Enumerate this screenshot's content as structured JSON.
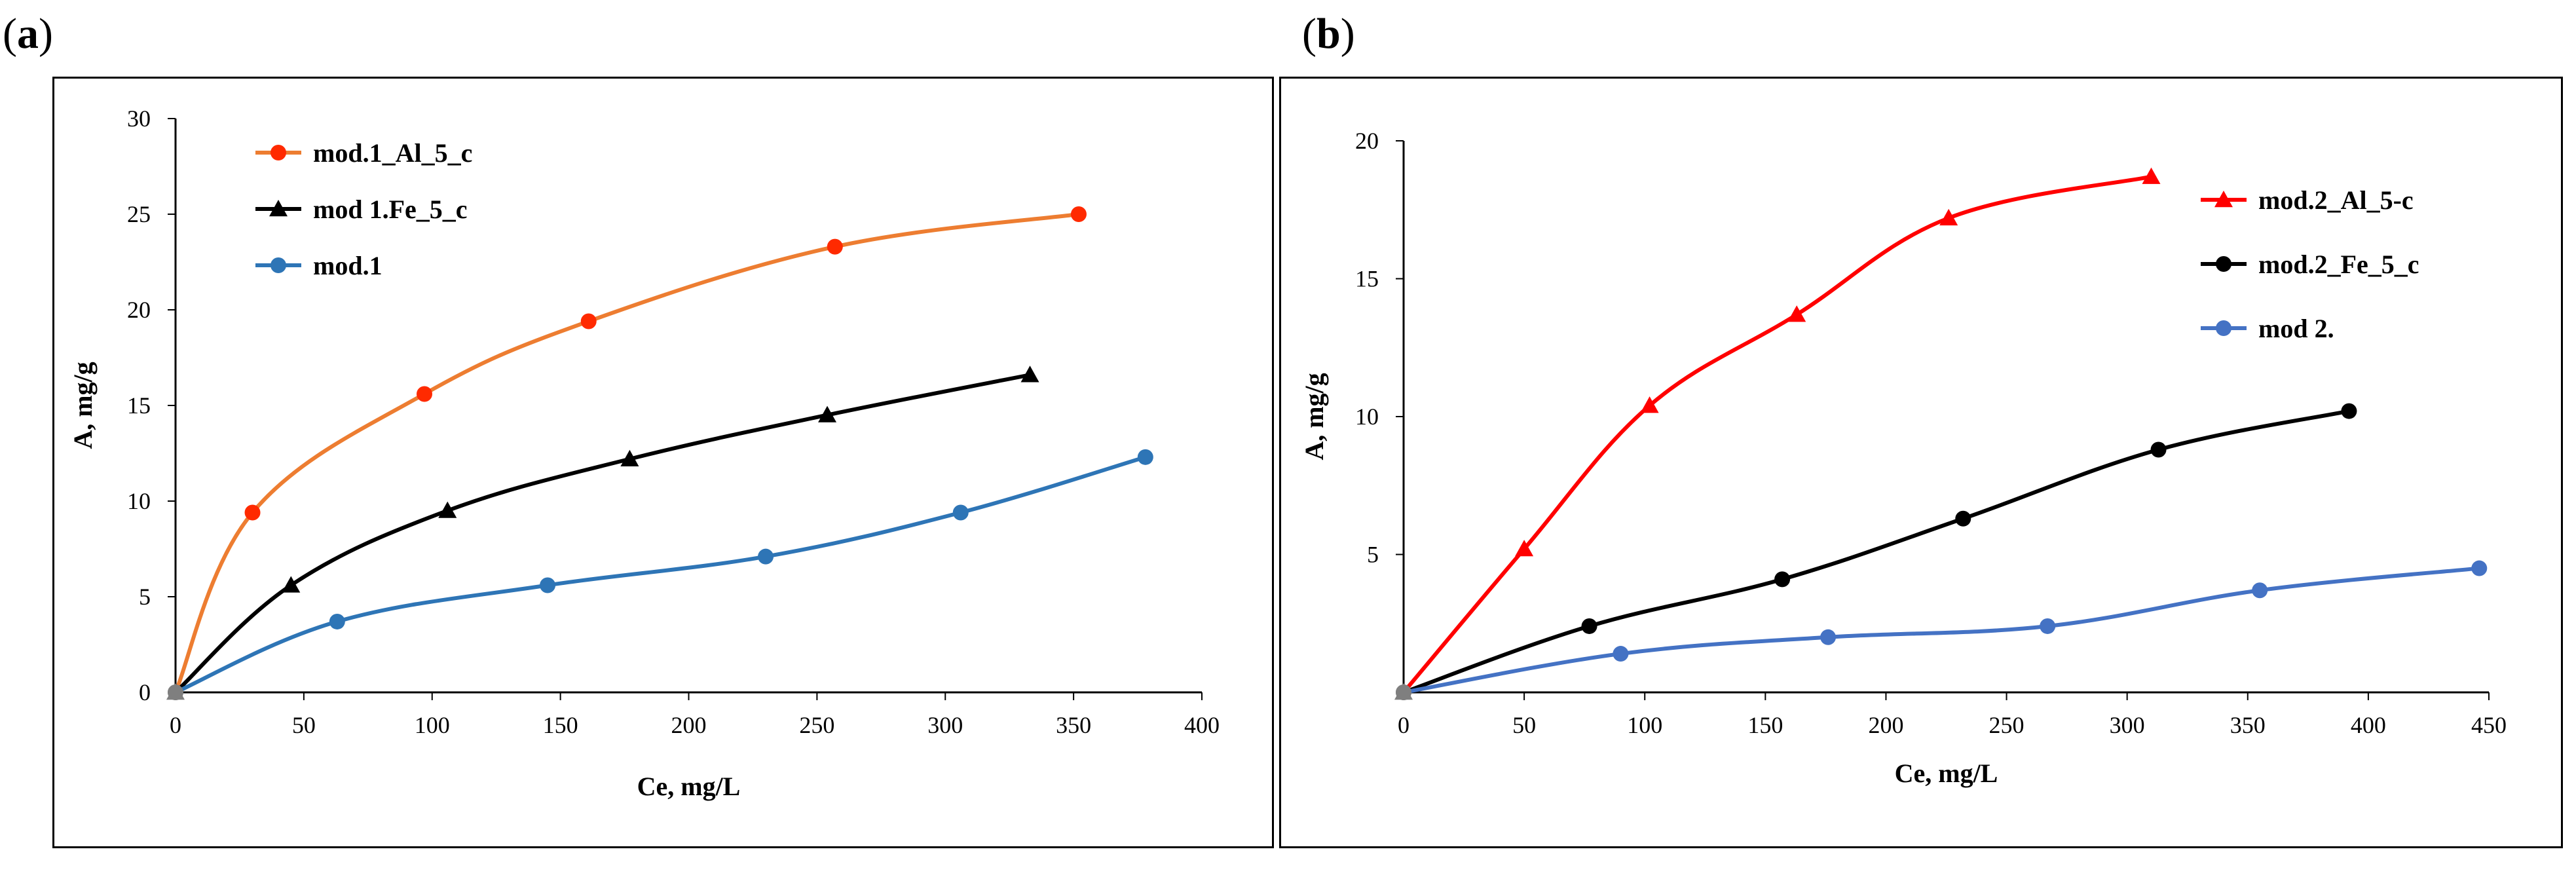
{
  "panels": {
    "a": {
      "label": "a"
    },
    "b": {
      "label": "b"
    }
  },
  "chart_data": [
    {
      "id": "a",
      "type": "line",
      "title": "",
      "xlabel": "Ce, mg/L",
      "ylabel": "A, mg/g",
      "xlim": [
        0,
        400
      ],
      "ylim": [
        0,
        30
      ],
      "xticks": [
        0,
        50,
        100,
        150,
        200,
        250,
        300,
        350,
        400
      ],
      "yticks": [
        0,
        5,
        10,
        15,
        20,
        25,
        30
      ],
      "grid": false,
      "legend_position": "top-left",
      "series": [
        {
          "name": "mod.1_Al_5_c",
          "line_color": "#ED7D31",
          "marker_color": "#FF2A00",
          "marker": "circle",
          "x": [
            0,
            30,
            97,
            161,
            257,
            352
          ],
          "y": [
            0,
            9.4,
            15.6,
            19.4,
            23.3,
            25.0
          ]
        },
        {
          "name": "mod 1.Fe_5_c",
          "line_color": "#000000",
          "marker_color": "#000000",
          "marker": "triangle",
          "x": [
            0,
            45,
            106,
            177,
            254,
            333
          ],
          "y": [
            0,
            5.6,
            9.5,
            12.2,
            14.5,
            16.6
          ]
        },
        {
          "name": "mod.1",
          "line_color": "#2E75B6",
          "marker_color": "#2E75B6",
          "marker": "circle",
          "x": [
            0,
            63,
            145,
            230,
            306,
            378
          ],
          "y": [
            0,
            3.7,
            5.6,
            7.1,
            9.4,
            12.3
          ]
        }
      ]
    },
    {
      "id": "b",
      "type": "line",
      "title": "",
      "xlabel": "Ce, mg/L",
      "ylabel": "A, mg/g",
      "xlim": [
        0,
        450
      ],
      "ylim": [
        0,
        20
      ],
      "xticks": [
        0,
        50,
        100,
        150,
        200,
        250,
        300,
        350,
        400,
        450
      ],
      "yticks": [
        5,
        10,
        15,
        20
      ],
      "grid": false,
      "legend_position": "top-right",
      "series": [
        {
          "name": "mod.2_Al_5-c",
          "line_color": "#FF0000",
          "marker_color": "#FF0000",
          "marker": "triangle",
          "x": [
            0,
            50,
            102,
            163,
            226,
            310
          ],
          "y": [
            0,
            5.2,
            10.4,
            13.7,
            17.2,
            18.7
          ]
        },
        {
          "name": "mod.2_Fe_5_c",
          "line_color": "#000000",
          "marker_color": "#000000",
          "marker": "circle",
          "x": [
            0,
            77,
            157,
            232,
            313,
            392
          ],
          "y": [
            0,
            2.4,
            4.1,
            6.3,
            8.8,
            10.2
          ]
        },
        {
          "name": "mod 2.",
          "line_color": "#4472C4",
          "marker_color": "#4472C4",
          "marker": "circle",
          "x": [
            0,
            90,
            176,
            267,
            355,
            446
          ],
          "y": [
            0,
            1.4,
            2.0,
            2.4,
            3.7,
            4.5
          ]
        }
      ]
    }
  ]
}
